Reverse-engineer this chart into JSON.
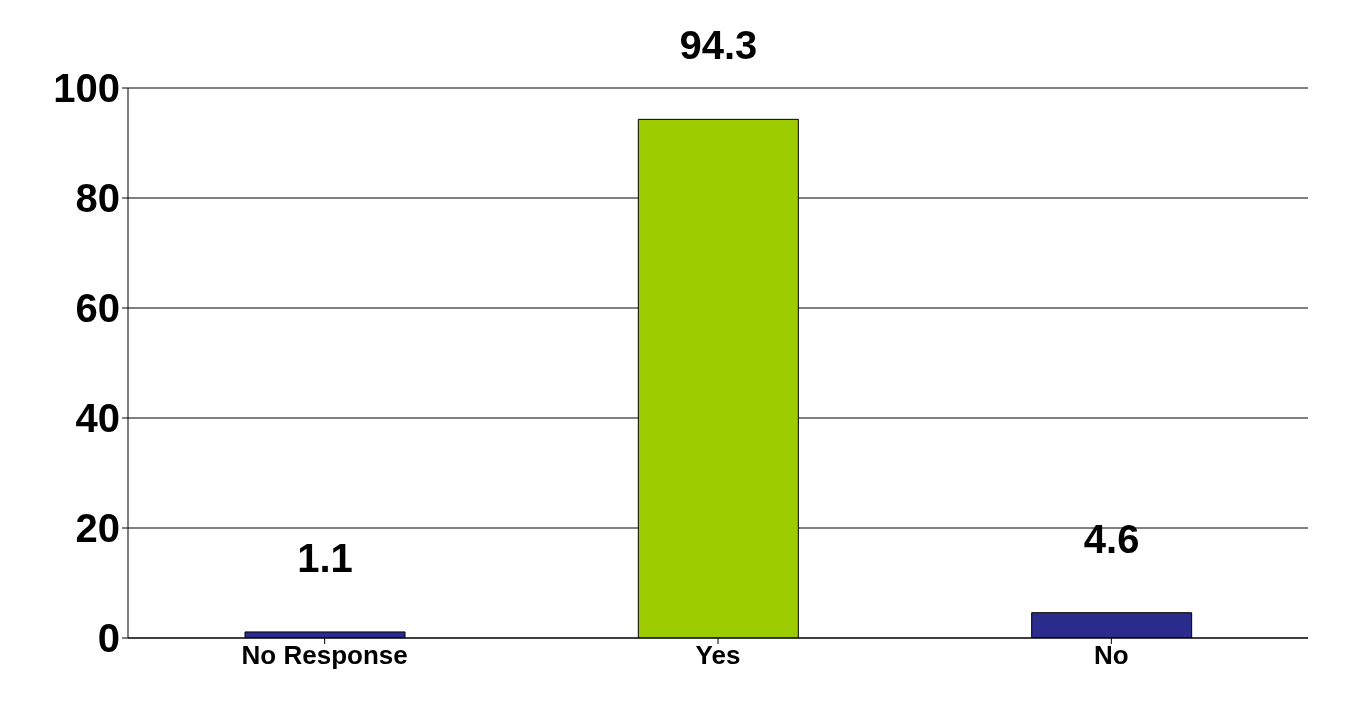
{
  "chart_data": {
    "type": "bar",
    "categories": [
      "No Response",
      "Yes",
      "No"
    ],
    "values": [
      1.1,
      94.3,
      4.6
    ],
    "colors": [
      "#2b2b8c",
      "#9ccc00",
      "#2b2b8c"
    ],
    "ylim": [
      0,
      100
    ],
    "yticks": [
      0,
      20,
      40,
      60,
      80,
      100
    ],
    "grid": "y",
    "data_labels": true
  }
}
